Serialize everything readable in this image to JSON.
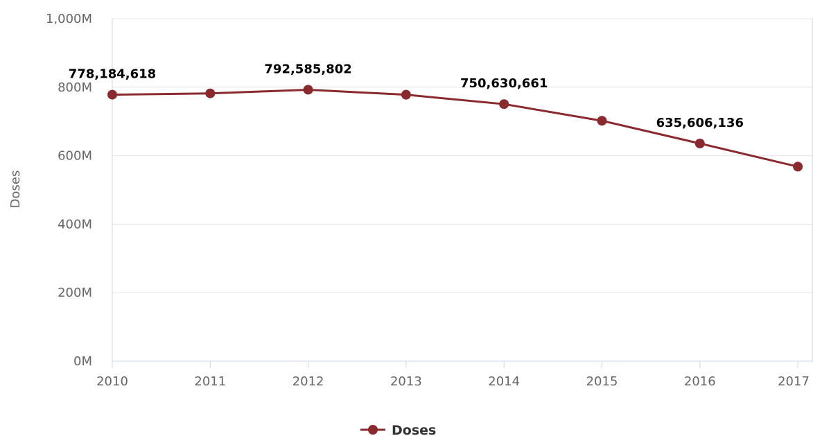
{
  "chart_data": {
    "type": "line",
    "title": "",
    "xlabel": "",
    "ylabel": "Doses",
    "x": [
      "2010",
      "2011",
      "2012",
      "2013",
      "2014",
      "2015",
      "2016",
      "2017"
    ],
    "ylim": [
      0,
      1000000000
    ],
    "y_ticks": [
      {
        "value": 0,
        "label": "0M"
      },
      {
        "value": 200000000,
        "label": "200M"
      },
      {
        "value": 400000000,
        "label": "400M"
      },
      {
        "value": 600000000,
        "label": "600M"
      },
      {
        "value": 800000000,
        "label": "800M"
      },
      {
        "value": 1000000000,
        "label": "1,000M"
      }
    ],
    "grid": true,
    "legend_position": "bottom-center",
    "series": [
      {
        "name": "Doses",
        "color": "#8b2a2e",
        "values": [
          778184618,
          782000000,
          792585802,
          778000000,
          750630661,
          702000000,
          635606136,
          568000000
        ],
        "data_labels": [
          "778,184,618",
          null,
          "792,585,802",
          null,
          "750,630,661",
          null,
          "635,606,136",
          null
        ]
      }
    ]
  }
}
